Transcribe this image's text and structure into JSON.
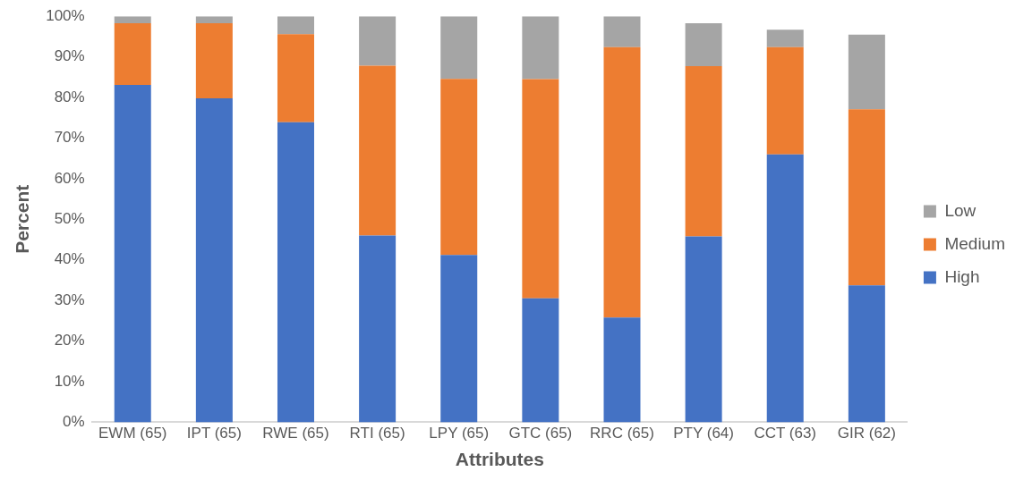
{
  "chart_data": {
    "type": "bar",
    "stacked": true,
    "xlabel": "Attributes",
    "ylabel": "Percent",
    "categories": [
      "EWM (65)",
      "IPT (65)",
      "RWE (65)",
      "RTI (65)",
      "LPY (65)",
      "GTC (65)",
      "RRC (65)",
      "PTY (64)",
      "CCT (63)",
      "GIR (62)"
    ],
    "series": [
      {
        "name": "High",
        "color": "#4472c4",
        "values": [
          83.1,
          79.8,
          73.9,
          46.0,
          41.2,
          30.5,
          25.8,
          45.8,
          66.0,
          33.7
        ]
      },
      {
        "name": "Medium",
        "color": "#ed7d31",
        "values": [
          15.2,
          18.5,
          21.7,
          41.8,
          43.4,
          54.0,
          66.6,
          41.9,
          26.4,
          43.4
        ]
      },
      {
        "name": "Low",
        "color": "#a5a5a5",
        "values": [
          1.7,
          1.7,
          4.4,
          12.2,
          15.4,
          15.5,
          7.6,
          10.6,
          4.3,
          18.4
        ]
      }
    ],
    "ylim": [
      0,
      100
    ],
    "yticks": [
      {
        "value": 0,
        "label": "0%"
      },
      {
        "value": 10,
        "label": "10%"
      },
      {
        "value": 20,
        "label": "20%"
      },
      {
        "value": 30,
        "label": "30%"
      },
      {
        "value": 40,
        "label": "40%"
      },
      {
        "value": 50,
        "label": "50%"
      },
      {
        "value": 60,
        "label": "60%"
      },
      {
        "value": 70,
        "label": "70%"
      },
      {
        "value": 80,
        "label": "80%"
      },
      {
        "value": 90,
        "label": "90%"
      },
      {
        "value": 100,
        "label": "100%"
      }
    ],
    "grid": false,
    "legend": "right"
  }
}
